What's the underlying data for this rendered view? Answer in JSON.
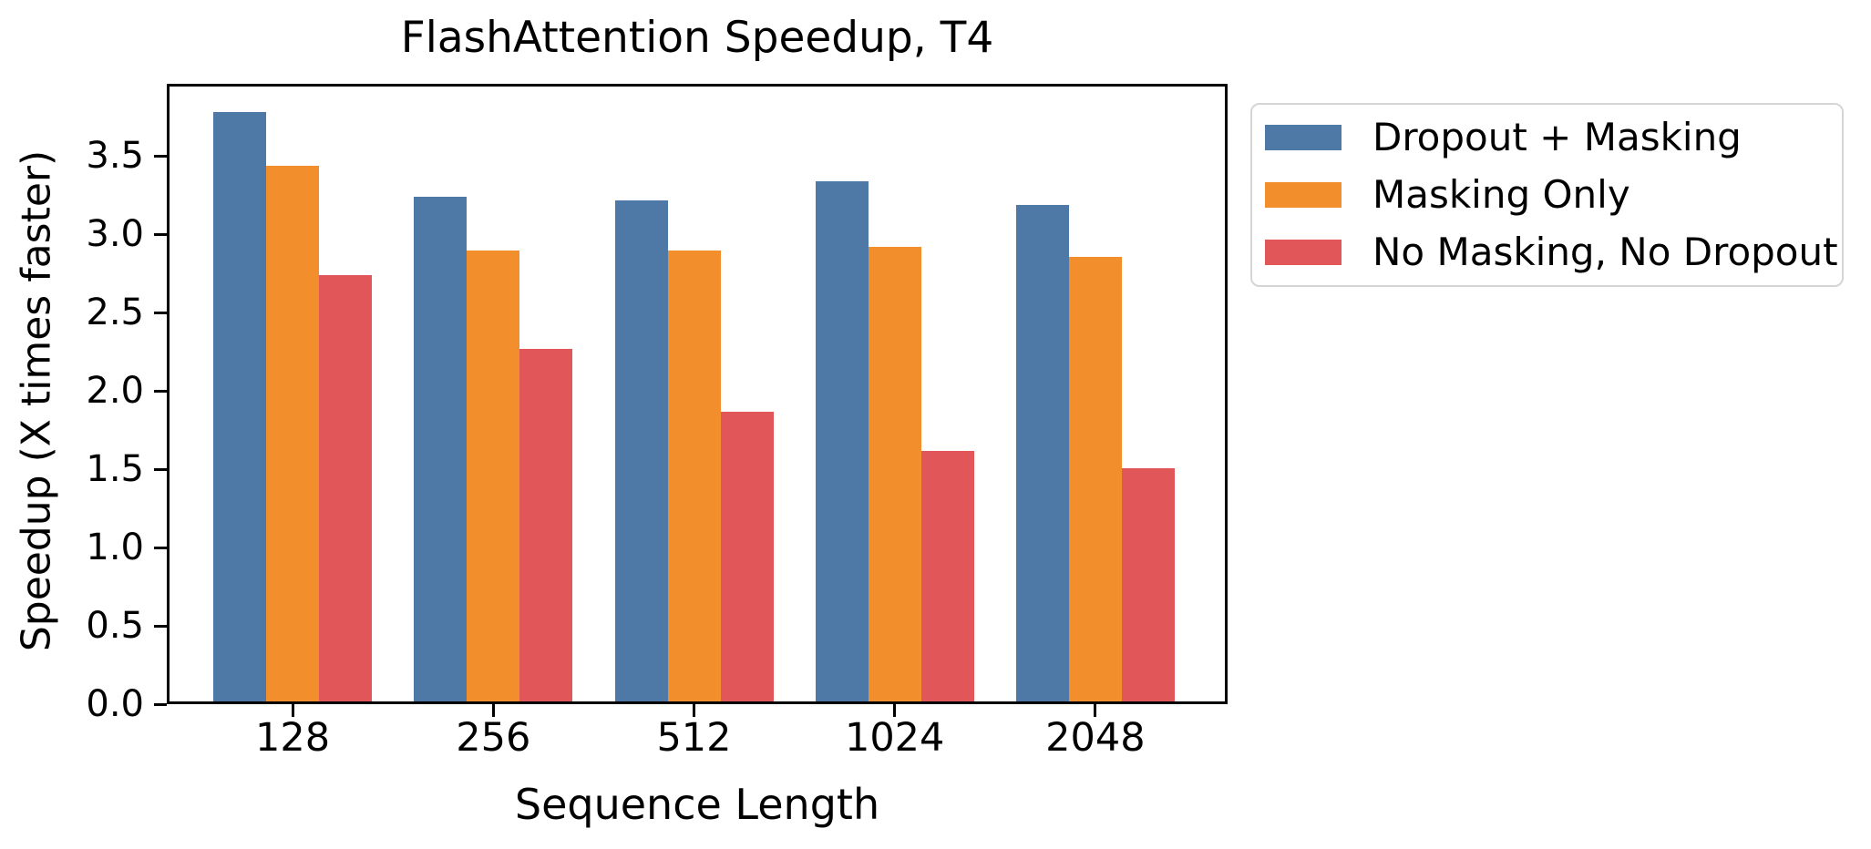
{
  "chart_data": {
    "type": "bar",
    "title": "FlashAttention Speedup, T4",
    "xlabel": "Sequence Length",
    "ylabel": "Speedup (X times faster)",
    "categories": [
      "128",
      "256",
      "512",
      "1024",
      "2048"
    ],
    "series": [
      {
        "name": "Dropout + Masking",
        "color": "#4E79A7",
        "values": [
          3.76,
          3.22,
          3.2,
          3.32,
          3.17
        ]
      },
      {
        "name": "Masking Only",
        "color": "#F28E2B",
        "values": [
          3.42,
          2.88,
          2.88,
          2.9,
          2.84
        ]
      },
      {
        "name": "No Masking, No Dropout",
        "color": "#E15759",
        "values": [
          2.72,
          2.25,
          1.85,
          1.6,
          1.49
        ]
      }
    ],
    "yticks": [
      "0.0",
      "0.5",
      "1.0",
      "1.5",
      "2.0",
      "2.5",
      "3.0",
      "3.5"
    ],
    "ylim": [
      0,
      3.96
    ],
    "grid": false,
    "legend_position": "outside-upper-right",
    "spine_color": "#000000",
    "background_color": "#ffffff"
  }
}
